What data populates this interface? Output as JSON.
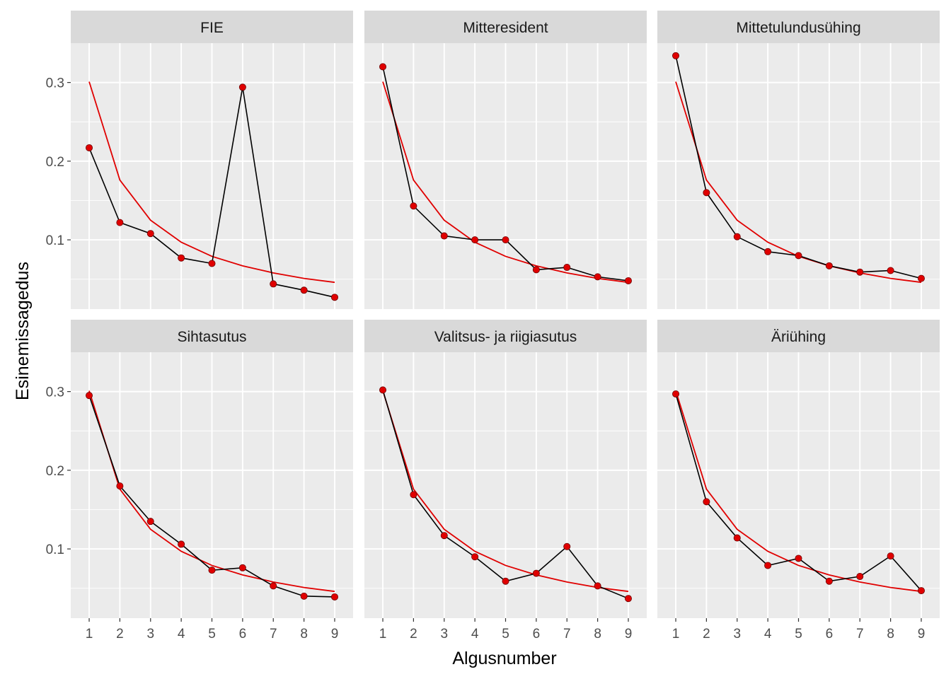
{
  "colors": {
    "panel_bg": "#ebebeb",
    "strip_bg": "#d9d9d9",
    "grid": "#ffffff",
    "observed_line": "#000000",
    "observed_point": "#e00000",
    "benford_line": "#e00000",
    "tick_text": "#4d4d4d",
    "strip_text": "#1a1a1a",
    "axis_title": "#000000"
  },
  "chart_data": {
    "type": "line",
    "layout": "facet-grid-2x3",
    "xlabel": "Algusnumber",
    "ylabel": "Esinemissagedus",
    "x": [
      1,
      2,
      3,
      4,
      5,
      6,
      7,
      8,
      9
    ],
    "x_ticks": [
      "1",
      "2",
      "3",
      "4",
      "5",
      "6",
      "7",
      "8",
      "9"
    ],
    "xlim": [
      0.4,
      9.6
    ],
    "ylim": [
      0.012,
      0.35
    ],
    "y_ticks": [
      0.1,
      0.2,
      0.3
    ],
    "y_tick_labels": [
      "0.1",
      "0.2",
      "0.3"
    ],
    "grid": true,
    "reference": [
      0.301,
      0.176,
      0.125,
      0.097,
      0.079,
      0.067,
      0.058,
      0.051,
      0.046
    ],
    "panels": [
      {
        "title": "FIE",
        "values": [
          0.217,
          0.122,
          0.108,
          0.077,
          0.07,
          0.294,
          0.044,
          0.036,
          0.027
        ]
      },
      {
        "title": "Mitteresident",
        "values": [
          0.32,
          0.143,
          0.105,
          0.1,
          0.1,
          0.062,
          0.065,
          0.053,
          0.048
        ]
      },
      {
        "title": "Mittetulundusühing",
        "values": [
          0.334,
          0.16,
          0.104,
          0.085,
          0.08,
          0.067,
          0.059,
          0.061,
          0.051
        ]
      },
      {
        "title": "Sihtasutus",
        "values": [
          0.295,
          0.18,
          0.135,
          0.106,
          0.073,
          0.076,
          0.053,
          0.04,
          0.039
        ]
      },
      {
        "title": "Valitsus- ja riigiasutus",
        "values": [
          0.302,
          0.169,
          0.117,
          0.09,
          0.059,
          0.069,
          0.103,
          0.053,
          0.037
        ]
      },
      {
        "title": "Äriühing",
        "values": [
          0.297,
          0.16,
          0.114,
          0.079,
          0.088,
          0.059,
          0.065,
          0.091,
          0.047
        ]
      }
    ]
  }
}
